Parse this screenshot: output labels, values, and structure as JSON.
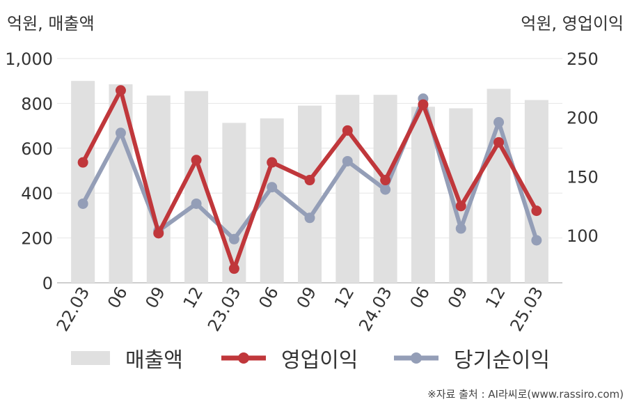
{
  "units": {
    "left": "억원, 매출액",
    "right": "억원, 영업이익"
  },
  "legend": {
    "revenue": "매출액",
    "operating_profit": "영업이익",
    "net_income": "당기순이익"
  },
  "source": "※자료 출처 : AI라씨로(www.rassiro.com)",
  "colors": {
    "revenue": "#e0e0e0",
    "operating_profit": "#c0373b",
    "net_income": "#949eb7"
  },
  "chart_data": {
    "type": "bar",
    "categories": [
      "22.03",
      "06",
      "09",
      "12",
      "23.03",
      "06",
      "09",
      "12",
      "24.03",
      "06",
      "09",
      "12",
      "25.03"
    ],
    "y_left": {
      "label": "억원, 매출액",
      "ylim": [
        0,
        1000
      ],
      "ticks": [
        0,
        200,
        400,
        600,
        800,
        1000
      ],
      "tick_labels": [
        "0",
        "200",
        "400",
        "600",
        "800",
        "1,000"
      ]
    },
    "y_right": {
      "label": "억원, 영업이익",
      "ylim": [
        60,
        250
      ],
      "ticks": [
        100,
        150,
        200,
        250
      ],
      "tick_labels": [
        "100",
        "150",
        "200",
        "250"
      ]
    },
    "series": [
      {
        "name": "매출액",
        "type": "bar",
        "axis": "left",
        "values": [
          900,
          885,
          835,
          855,
          713,
          733,
          790,
          838,
          838,
          785,
          778,
          865,
          815
        ]
      },
      {
        "name": "영업이익",
        "type": "line",
        "axis": "right",
        "values": [
          162,
          223,
          102,
          164,
          72,
          162,
          147,
          189,
          147,
          211,
          125,
          179,
          121
        ]
      },
      {
        "name": "당기순이익",
        "type": "line",
        "axis": "right",
        "values": [
          127,
          187,
          104,
          127,
          97,
          141,
          115,
          163,
          139,
          216,
          106,
          196,
          96
        ]
      }
    ],
    "grid": true,
    "legend_position": "bottom"
  }
}
